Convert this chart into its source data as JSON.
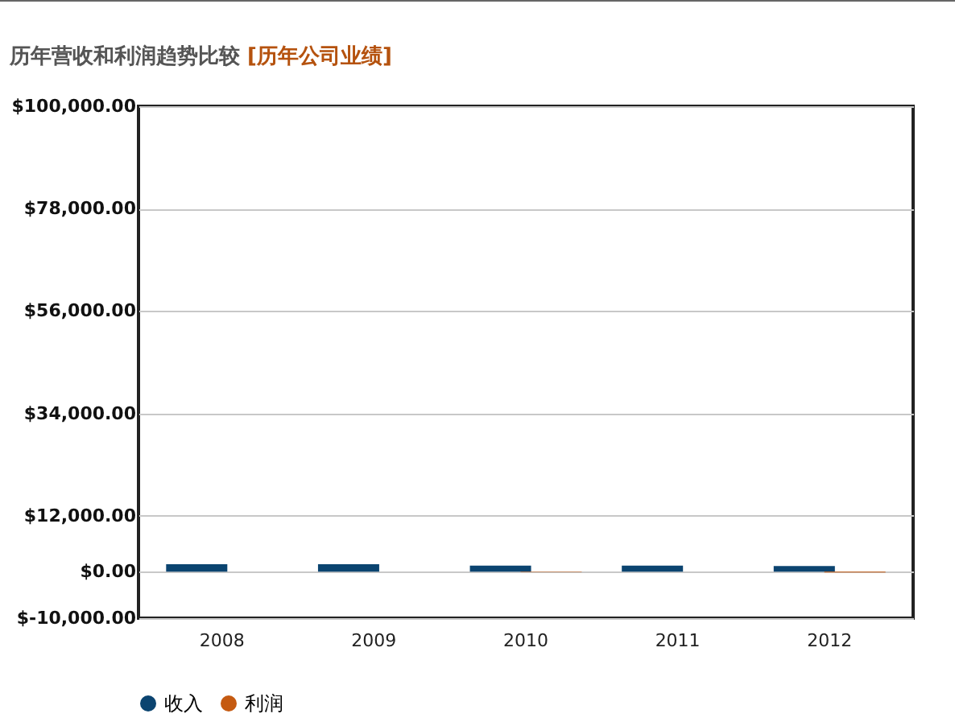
{
  "chart_data": {
    "type": "bar",
    "title": "历年营收和利润趋势比较",
    "subtitle": "[历年公司业绩]",
    "categories": [
      "2008",
      "2009",
      "2010",
      "2011",
      "2012"
    ],
    "series": [
      {
        "name": "收入",
        "color": "#0b4470",
        "values": [
          1600,
          1600,
          1300,
          1300,
          1200
        ]
      },
      {
        "name": "利润",
        "color": "#c55a11",
        "values": [
          0,
          0,
          -100,
          0,
          -200
        ]
      }
    ],
    "ylim": [
      -10000,
      100000
    ],
    "yticks": [
      {
        "value": -10000,
        "label": "$-10,000.00"
      },
      {
        "value": 0,
        "label": "$0.00"
      },
      {
        "value": 12000,
        "label": "$12,000.00"
      },
      {
        "value": 34000,
        "label": "$34,000.00"
      },
      {
        "value": 56000,
        "label": "$56,000.00"
      },
      {
        "value": 78000,
        "label": "$78,000.00"
      },
      {
        "value": 100000,
        "label": "$100,000.00"
      }
    ],
    "grid": "y",
    "legend": "bottom",
    "marker": "circle"
  }
}
